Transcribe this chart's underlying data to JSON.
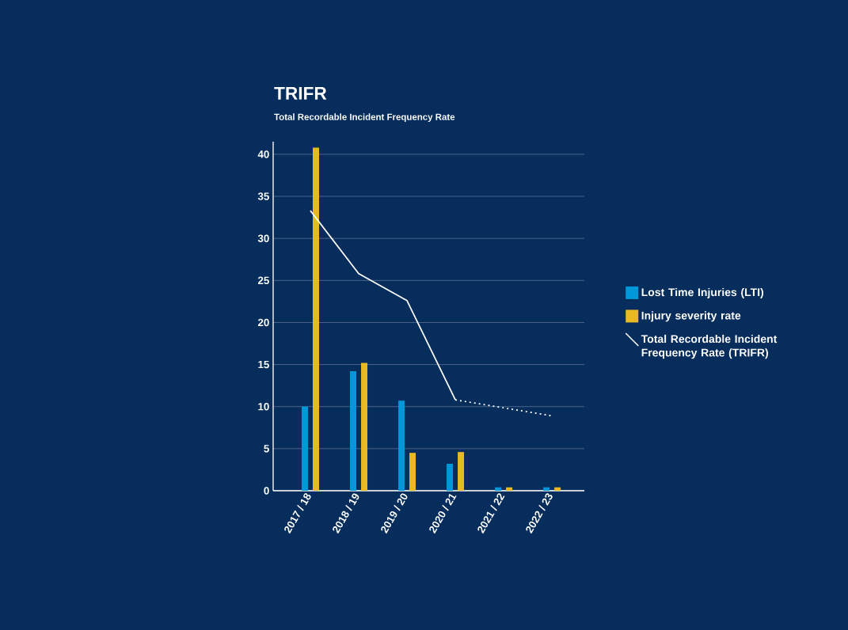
{
  "chart_data": {
    "type": "bar",
    "title": "TRIFR",
    "subtitle": "Total Recordable Incident Frequency Rate",
    "categories": [
      "2017 / 18",
      "2018 / 19",
      "2019 / 20",
      "2020 / 21",
      "2021 / 22",
      "2022 / 23"
    ],
    "series": [
      {
        "name": "Lost Time Injuries (LTI)",
        "color": "#0098d8",
        "values": [
          10.0,
          14.2,
          10.7,
          3.2,
          0.4,
          0.4
        ]
      },
      {
        "name": "Injury severity rate",
        "color": "#e8b923",
        "values": [
          40.8,
          15.2,
          4.5,
          4.6,
          0.4,
          0.4
        ]
      },
      {
        "name": "Total Recordable Incident Frequency Rate (TRIFR)",
        "type": "line",
        "color": "#ffffff",
        "line_style": "solid",
        "values": [
          33.3,
          25.8,
          22.6,
          10.8,
          null,
          null
        ]
      },
      {
        "type": "line",
        "color": "#ffffff",
        "line_style": "dotted",
        "values": [
          null,
          null,
          null,
          10.8,
          null,
          8.9
        ]
      }
    ],
    "ylim": [
      0,
      41.5
    ],
    "yticks": [
      0,
      5,
      10,
      15,
      20,
      25,
      30,
      35,
      40
    ],
    "grid": "y",
    "legend": "right"
  }
}
